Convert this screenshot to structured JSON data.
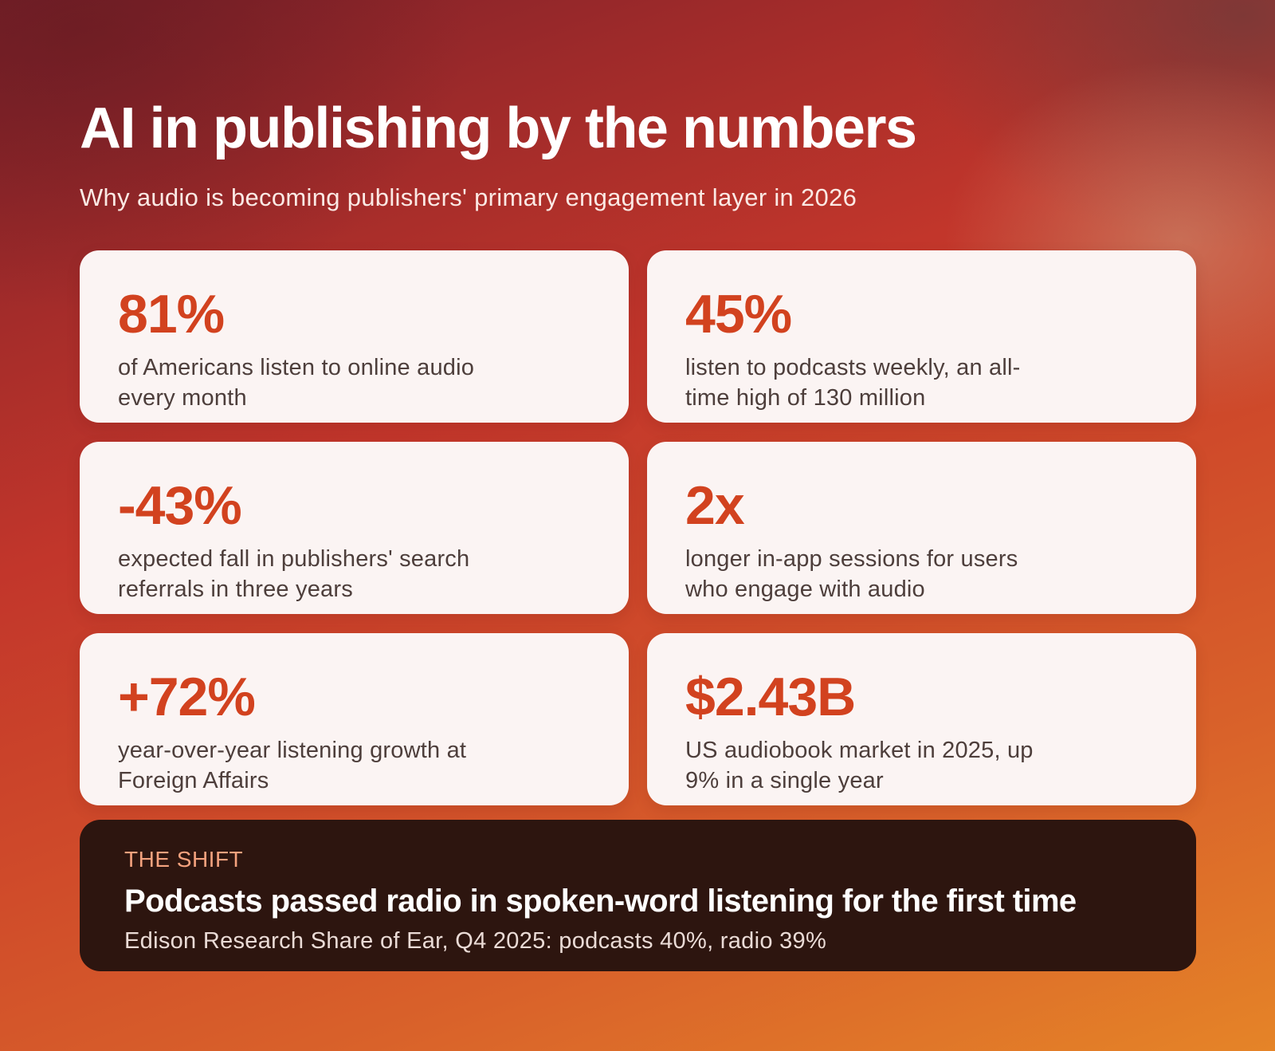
{
  "header": {
    "title": "AI in publishing by the numbers",
    "subtitle": "Why audio is becoming publishers' primary engagement layer in 2026"
  },
  "stats": [
    {
      "value": "81%",
      "description": "of Americans listen to online audio every month"
    },
    {
      "value": "45%",
      "description": "listen to podcasts weekly, an all-time high of 130 million"
    },
    {
      "value": "-43%",
      "description": "expected fall in publishers' search referrals in three years"
    },
    {
      "value": "2x",
      "description": "longer in-app sessions for users who engage with audio"
    },
    {
      "value": "+72%",
      "description": "year-over-year listening growth at Foreign Affairs"
    },
    {
      "value": "$2.43B",
      "description": "US audiobook market in 2025, up 9% in a single year"
    }
  ],
  "shift": {
    "label": "THE SHIFT",
    "headline": "Podcasts passed radio in spoken-word listening for the first time",
    "source": "Edison Research Share of Ear, Q4 2025: podcasts 40%, radio 39%"
  },
  "colors": {
    "accent": "#d2421f",
    "card_background": "#fbf4f3",
    "shift_background": "#2d150f",
    "shift_label": "#f4a27e"
  }
}
